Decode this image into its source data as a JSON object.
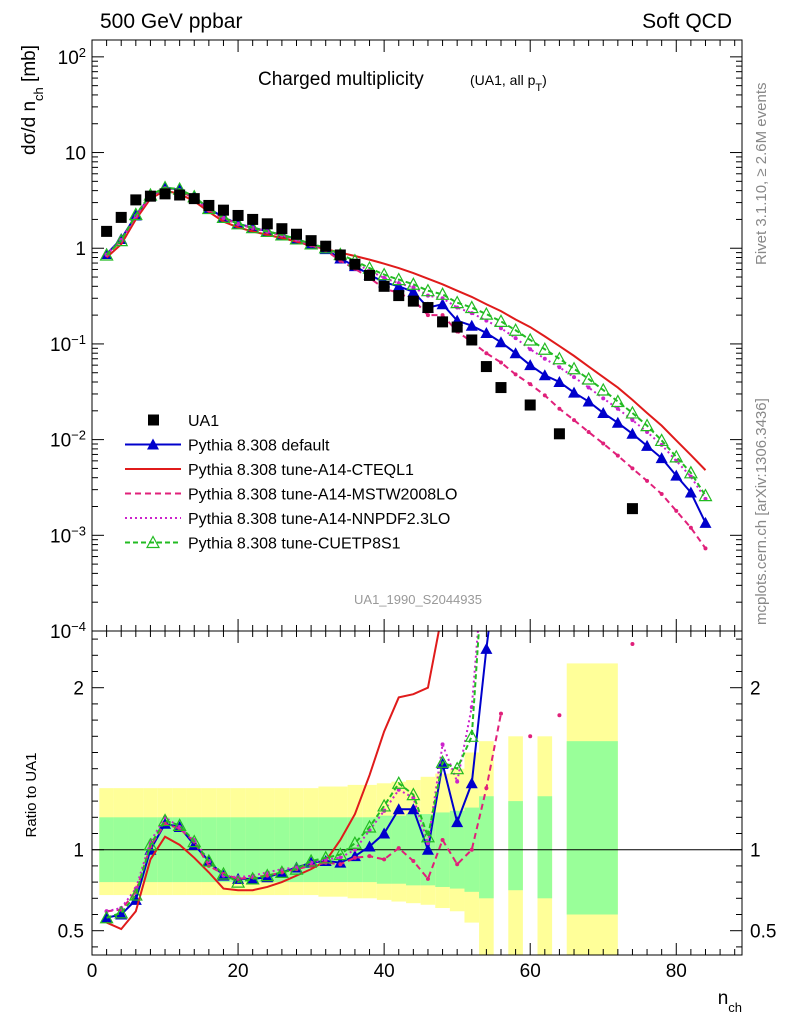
{
  "header": {
    "left": "500 GeV ppbar",
    "right": "Soft QCD"
  },
  "side": {
    "top": "Rivet 3.1.10, ≥ 2.6M events",
    "bottom": "mcplots.cern.ch [arXiv:1306.3436]"
  },
  "chart_data": {
    "type": "line",
    "title": "Charged multiplicity",
    "subtitle": "(UA1, all p_T)",
    "watermark": "UA1_1990_S2044935",
    "xlabel": "n_ch",
    "ylabel": "dσ/d n_ch [mb]",
    "ratio_ylabel": "Ratio to UA1",
    "xlim": [
      0,
      89
    ],
    "ylim": [
      0.0001,
      150
    ],
    "yscale": "log",
    "ratio_ylim": [
      0.35,
      2.35
    ],
    "x_ticks": [
      0,
      20,
      40,
      60,
      80
    ],
    "y_ticks": [
      {
        "value": 100,
        "label": "10^2"
      },
      {
        "value": 10,
        "label": "10"
      },
      {
        "value": 1,
        "label": "1"
      },
      {
        "value": 0.1,
        "label": "10^-1"
      },
      {
        "value": 0.01,
        "label": "10^-2"
      },
      {
        "value": 0.001,
        "label": "10^-3"
      },
      {
        "value": 0.0001,
        "label": "10^-4"
      }
    ],
    "ratio_ticks": [
      {
        "value": 0.5,
        "label": "0.5"
      },
      {
        "value": 1,
        "label": "1"
      },
      {
        "value": 2,
        "label": "2"
      }
    ],
    "legend_position": "bottom-left",
    "data": {
      "name": "UA1",
      "x": [
        2,
        4,
        6,
        8,
        10,
        12,
        14,
        16,
        18,
        20,
        22,
        24,
        26,
        28,
        30,
        32,
        34,
        36,
        38,
        40,
        42,
        44,
        46,
        48,
        50,
        52,
        54,
        56,
        60,
        64,
        74
      ],
      "y": [
        1.5,
        2.1,
        3.2,
        3.5,
        3.7,
        3.6,
        3.3,
        2.8,
        2.5,
        2.2,
        2.0,
        1.8,
        1.6,
        1.4,
        1.2,
        1.05,
        0.85,
        0.68,
        0.52,
        0.4,
        0.32,
        0.28,
        0.24,
        0.17,
        0.15,
        0.11,
        0.058,
        0.035,
        0.023,
        0.0115,
        0.0019
      ]
    },
    "ratio_bands": {
      "x_edges": [
        1,
        3,
        5,
        7,
        9,
        11,
        13,
        15,
        17,
        19,
        21,
        23,
        25,
        27,
        29,
        31,
        33,
        35,
        37,
        39,
        41,
        43,
        45,
        47,
        49,
        51,
        53,
        55,
        57,
        59,
        61,
        63,
        65,
        72,
        76
      ],
      "inner": [
        [
          0.8,
          1.2
        ],
        [
          0.8,
          1.2
        ],
        [
          0.8,
          1.2
        ],
        [
          0.8,
          1.2
        ],
        [
          0.8,
          1.2
        ],
        [
          0.8,
          1.2
        ],
        [
          0.8,
          1.2
        ],
        [
          0.8,
          1.2
        ],
        [
          0.8,
          1.2
        ],
        [
          0.8,
          1.2
        ],
        [
          0.8,
          1.2
        ],
        [
          0.8,
          1.2
        ],
        [
          0.8,
          1.2
        ],
        [
          0.8,
          1.2
        ],
        [
          0.8,
          1.2
        ],
        [
          0.8,
          1.2
        ],
        [
          0.8,
          1.2
        ],
        [
          0.8,
          1.2
        ],
        [
          0.8,
          1.2
        ],
        [
          0.79,
          1.21
        ],
        [
          0.79,
          1.21
        ],
        [
          0.78,
          1.22
        ],
        [
          0.78,
          1.22
        ],
        [
          0.77,
          1.23
        ],
        [
          0.76,
          1.24
        ],
        [
          0.74,
          1.26
        ],
        [
          0.7,
          1.33
        ],
        null,
        [
          0.75,
          1.3
        ],
        null,
        [
          0.7,
          1.33
        ],
        null,
        [
          0.6,
          1.67
        ]
      ],
      "outer": [
        [
          0.72,
          1.38
        ],
        [
          0.72,
          1.38
        ],
        [
          0.72,
          1.38
        ],
        [
          0.72,
          1.38
        ],
        [
          0.72,
          1.38
        ],
        [
          0.72,
          1.38
        ],
        [
          0.72,
          1.38
        ],
        [
          0.72,
          1.38
        ],
        [
          0.72,
          1.38
        ],
        [
          0.72,
          1.38
        ],
        [
          0.72,
          1.38
        ],
        [
          0.72,
          1.38
        ],
        [
          0.72,
          1.38
        ],
        [
          0.72,
          1.38
        ],
        [
          0.72,
          1.38
        ],
        [
          0.71,
          1.39
        ],
        [
          0.71,
          1.39
        ],
        [
          0.7,
          1.4
        ],
        [
          0.7,
          1.4
        ],
        [
          0.69,
          1.41
        ],
        [
          0.68,
          1.42
        ],
        [
          0.67,
          1.43
        ],
        [
          0.66,
          1.45
        ],
        [
          0.64,
          1.47
        ],
        [
          0.62,
          1.5
        ],
        [
          0.55,
          1.6
        ],
        [
          0.35,
          1.67
        ],
        null,
        [
          0.35,
          1.7
        ],
        null,
        [
          0.35,
          1.7
        ],
        null,
        [
          0.35,
          2.15
        ]
      ]
    },
    "series": [
      {
        "name": "Pythia 8.308 default",
        "color": "#0000cc",
        "dash": "",
        "marker": "triangle-filled",
        "x": [
          2,
          4,
          6,
          8,
          10,
          12,
          14,
          16,
          18,
          20,
          22,
          24,
          26,
          28,
          30,
          32,
          34,
          36,
          38,
          40,
          42,
          44,
          46,
          48,
          50,
          52,
          54,
          56,
          58,
          60,
          62,
          64,
          66,
          68,
          70,
          72,
          74,
          76,
          78,
          80,
          82,
          84
        ],
        "y": [
          0.87,
          1.25,
          2.2,
          3.5,
          4.3,
          4.1,
          3.4,
          2.6,
          2.1,
          1.8,
          1.65,
          1.5,
          1.38,
          1.25,
          1.1,
          0.98,
          0.78,
          0.65,
          0.53,
          0.44,
          0.4,
          0.35,
          0.24,
          0.26,
          0.175,
          0.155,
          0.13,
          0.104,
          0.08,
          0.06,
          0.047,
          0.04,
          0.031,
          0.025,
          0.019,
          0.015,
          0.0115,
          0.0086,
          0.0064,
          0.0042,
          0.0028,
          0.00135
        ],
        "ratio": [
          0.58,
          0.6,
          0.69,
          1.0,
          1.16,
          1.14,
          1.03,
          0.93,
          0.84,
          0.82,
          0.82,
          0.83,
          0.86,
          0.89,
          0.92,
          0.93,
          0.92,
          0.96,
          1.02,
          1.1,
          1.25,
          1.25,
          1.0,
          1.53,
          1.17,
          1.41,
          2.24,
          2.97,
          null,
          2.61,
          null,
          3.48
        ]
      },
      {
        "name": "Pythia 8.308 tune-A14-CTEQL1",
        "color": "#e01b1b",
        "dash": "",
        "marker": "none",
        "x": [
          2,
          4,
          6,
          8,
          10,
          12,
          14,
          16,
          18,
          20,
          22,
          24,
          26,
          28,
          30,
          32,
          34,
          36,
          38,
          40,
          42,
          44,
          46,
          48,
          50,
          52,
          54,
          56,
          58,
          60,
          62,
          64,
          66,
          68,
          70,
          72,
          74,
          76,
          78,
          80,
          82,
          84
        ],
        "y": [
          0.8,
          1.1,
          2.0,
          3.3,
          4.0,
          3.7,
          3.1,
          2.4,
          1.9,
          1.65,
          1.5,
          1.38,
          1.28,
          1.17,
          1.06,
          0.98,
          0.9,
          0.83,
          0.76,
          0.69,
          0.62,
          0.55,
          0.48,
          0.42,
          0.36,
          0.31,
          0.26,
          0.22,
          0.18,
          0.15,
          0.12,
          0.095,
          0.075,
          0.058,
          0.045,
          0.035,
          0.026,
          0.019,
          0.014,
          0.0098,
          0.0069,
          0.0048
        ],
        "ratio": [
          0.55,
          0.51,
          0.62,
          0.94,
          1.08,
          1.03,
          0.95,
          0.86,
          0.76,
          0.75,
          0.75,
          0.77,
          0.8,
          0.84,
          0.88,
          0.93,
          1.06,
          1.22,
          1.46,
          1.73,
          1.94,
          1.96,
          2.0,
          2.47,
          2.4,
          2.82,
          4.48,
          6.29
        ]
      },
      {
        "name": "Pythia 8.308 tune-A14-MSTW2008LO",
        "color": "#e0207a",
        "dash": "6,4",
        "marker": "dot",
        "x": [
          2,
          4,
          6,
          8,
          10,
          12,
          14,
          16,
          18,
          20,
          22,
          24,
          26,
          28,
          30,
          32,
          34,
          36,
          38,
          40,
          42,
          44,
          46,
          48,
          50,
          52,
          54,
          56,
          58,
          60,
          62,
          64,
          66,
          68,
          70,
          72,
          74,
          76,
          78,
          80,
          82,
          84
        ],
        "y": [
          0.85,
          1.2,
          2.15,
          3.45,
          4.2,
          4.0,
          3.3,
          2.5,
          2.05,
          1.78,
          1.62,
          1.48,
          1.36,
          1.22,
          1.07,
          0.95,
          0.74,
          0.61,
          0.49,
          0.38,
          0.34,
          0.29,
          0.2,
          0.2,
          0.135,
          0.105,
          0.08,
          0.064,
          0.048,
          0.038,
          0.029,
          0.021,
          0.016,
          0.012,
          0.0091,
          0.0068,
          0.005,
          0.0037,
          0.0027,
          0.0018,
          0.0012,
          0.00073
        ],
        "ratio": [
          0.62,
          0.63,
          0.74,
          1.02,
          1.16,
          1.13,
          1.05,
          0.9,
          0.85,
          0.82,
          0.83,
          0.84,
          0.86,
          0.88,
          0.9,
          0.92,
          0.91,
          0.95,
          0.96,
          0.94,
          1.01,
          0.93,
          0.82,
          1.06,
          0.91,
          1.0,
          1.38,
          1.84,
          null,
          1.7,
          null,
          1.83,
          null,
          null,
          null,
          null,
          2.27
        ]
      },
      {
        "name": "Pythia 8.308 tune-A14-NNPDF2.3LO",
        "color": "#cc22cc",
        "dash": "2,3",
        "marker": "dot",
        "x": [
          2,
          4,
          6,
          8,
          10,
          12,
          14,
          16,
          18,
          20,
          22,
          24,
          26,
          28,
          30,
          32,
          34,
          36,
          38,
          40,
          42,
          44,
          46,
          48,
          50,
          52,
          54,
          56,
          58,
          60,
          62,
          64,
          66,
          68,
          70,
          72,
          74,
          76,
          78,
          80,
          82,
          84
        ],
        "y": [
          0.86,
          1.22,
          2.18,
          3.48,
          4.25,
          4.05,
          3.35,
          2.55,
          2.08,
          1.8,
          1.64,
          1.5,
          1.37,
          1.24,
          1.09,
          0.99,
          0.82,
          0.7,
          0.58,
          0.49,
          0.43,
          0.39,
          0.32,
          0.3,
          0.24,
          0.21,
          0.175,
          0.146,
          0.115,
          0.088,
          0.07,
          0.057,
          0.045,
          0.035,
          0.027,
          0.021,
          0.016,
          0.012,
          0.0088,
          0.006,
          0.0041,
          0.0024
        ],
        "ratio": [
          0.62,
          0.64,
          0.76,
          1.05,
          1.2,
          1.14,
          1.06,
          0.93,
          0.84,
          0.83,
          0.84,
          0.86,
          0.88,
          0.89,
          0.92,
          0.94,
          0.95,
          1.0,
          1.12,
          1.24,
          1.37,
          1.32,
          1.04,
          1.65,
          1.42,
          1.88,
          3.0,
          4.2
        ]
      },
      {
        "name": "Pythia 8.308 tune-CUETP8S1",
        "color": "#22bb22",
        "dash": "5,3",
        "marker": "triangle-open",
        "x": [
          2,
          4,
          6,
          8,
          10,
          12,
          14,
          16,
          18,
          20,
          22,
          24,
          26,
          28,
          30,
          32,
          34,
          36,
          38,
          40,
          42,
          44,
          46,
          48,
          50,
          52,
          54,
          56,
          58,
          60,
          62,
          64,
          66,
          68,
          70,
          72,
          74,
          76,
          78,
          80,
          82,
          84
        ],
        "y": [
          0.85,
          1.2,
          2.25,
          3.6,
          4.3,
          4.15,
          3.45,
          2.6,
          2.1,
          1.8,
          1.64,
          1.5,
          1.38,
          1.25,
          1.11,
          1.01,
          0.86,
          0.74,
          0.62,
          0.53,
          0.47,
          0.42,
          0.36,
          0.33,
          0.27,
          0.24,
          0.205,
          0.172,
          0.139,
          0.11,
          0.088,
          0.07,
          0.055,
          0.043,
          0.033,
          0.025,
          0.019,
          0.014,
          0.0098,
          0.0066,
          0.0045,
          0.0026
        ],
        "ratio": [
          0.58,
          0.61,
          0.72,
          1.03,
          1.18,
          1.15,
          1.05,
          0.93,
          0.85,
          0.8,
          0.82,
          0.84,
          0.86,
          0.88,
          0.93,
          0.95,
          0.97,
          1.04,
          1.14,
          1.27,
          1.41,
          1.34,
          1.08,
          1.54,
          1.5,
          1.7,
          3.04,
          4.3
        ]
      }
    ]
  }
}
